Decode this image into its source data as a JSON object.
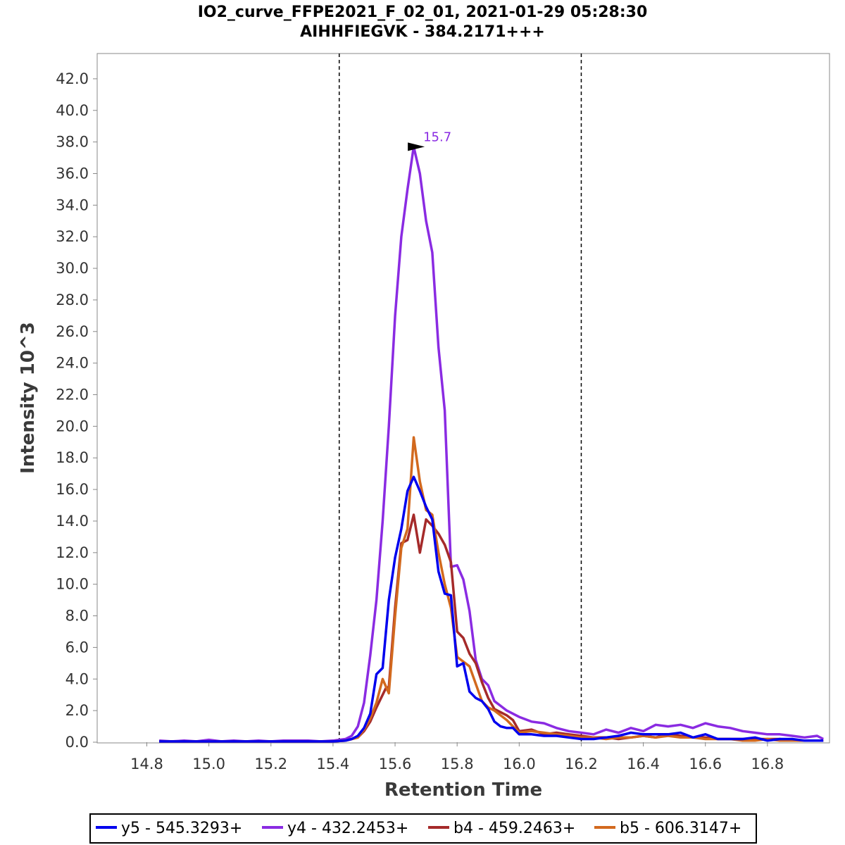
{
  "chart_data": {
    "type": "line",
    "title": "IO2_curve_FFPE2021_F_02_01, 2021-01-29 05:28:30",
    "subtitle": "AIHHFIEGVK - 384.2171+++",
    "xlabel": "Retention Time",
    "ylabel": "Intensity 10^3",
    "xlim": [
      14.64,
      17.0
    ],
    "ylim": [
      0,
      43.6
    ],
    "x_ticks": [
      14.8,
      15.0,
      15.2,
      15.4,
      15.6,
      15.8,
      16.0,
      16.2,
      16.4,
      16.6,
      16.8
    ],
    "x_tick_labels": [
      "14.8",
      "15.0",
      "15.2",
      "15.4",
      "15.6",
      "15.8",
      "16.0",
      "16.2",
      "16.4",
      "16.6",
      "16.8"
    ],
    "y_ticks": [
      0,
      2,
      4,
      6,
      8,
      10,
      12,
      14,
      16,
      18,
      20,
      22,
      24,
      26,
      28,
      30,
      32,
      34,
      36,
      38,
      40,
      42
    ],
    "y_tick_labels": [
      "0.0",
      "2.0",
      "4.0",
      "6.0",
      "8.0",
      "10.0",
      "12.0",
      "14.0",
      "16.0",
      "18.0",
      "20.0",
      "22.0",
      "24.0",
      "26.0",
      "28.0",
      "30.0",
      "32.0",
      "34.0",
      "36.0",
      "38.0",
      "40.0",
      "42.0"
    ],
    "boundaries": [
      15.42,
      16.2
    ],
    "grid": false,
    "legend_position": "bottom-center",
    "peak_annotation": {
      "label": "15.7",
      "x": 15.7,
      "y": 37.7,
      "series": "y4 - 432.2453+"
    },
    "series": [
      {
        "name": "y4 - 432.2453+",
        "color": "#8a2be2",
        "x": [
          14.84,
          14.88,
          14.92,
          14.96,
          15.0,
          15.04,
          15.08,
          15.12,
          15.16,
          15.2,
          15.24,
          15.28,
          15.32,
          15.36,
          15.4,
          15.44,
          15.46,
          15.48,
          15.5,
          15.52,
          15.54,
          15.56,
          15.58,
          15.6,
          15.62,
          15.64,
          15.66,
          15.68,
          15.7,
          15.72,
          15.74,
          15.76,
          15.78,
          15.8,
          15.82,
          15.84,
          15.86,
          15.88,
          15.9,
          15.92,
          15.94,
          15.96,
          15.98,
          16.0,
          16.04,
          16.08,
          16.12,
          16.16,
          16.2,
          16.24,
          16.28,
          16.32,
          16.36,
          16.4,
          16.44,
          16.48,
          16.52,
          16.56,
          16.6,
          16.64,
          16.68,
          16.72,
          16.76,
          16.8,
          16.84,
          16.88,
          16.92,
          16.96,
          16.98
        ],
        "values": [
          0.1,
          0.05,
          0.1,
          0.05,
          0.15,
          0.05,
          0.1,
          0.05,
          0.1,
          0.05,
          0.1,
          0.1,
          0.1,
          0.05,
          0.1,
          0.2,
          0.4,
          1.0,
          2.5,
          5.5,
          9.0,
          14.0,
          20.0,
          27.0,
          32.0,
          35.0,
          37.7,
          36.0,
          33.0,
          31.0,
          25.0,
          21.0,
          11.1,
          11.2,
          10.3,
          8.3,
          5.2,
          4.0,
          3.6,
          2.6,
          2.3,
          2.0,
          1.8,
          1.6,
          1.3,
          1.2,
          0.9,
          0.7,
          0.6,
          0.5,
          0.8,
          0.6,
          0.9,
          0.7,
          1.1,
          1.0,
          1.1,
          0.9,
          1.2,
          1.0,
          0.9,
          0.7,
          0.6,
          0.5,
          0.5,
          0.4,
          0.3,
          0.4,
          0.2
        ]
      },
      {
        "name": "b4 - 459.2463+",
        "color": "#a52a2a",
        "x": [
          14.84,
          14.92,
          15.0,
          15.08,
          15.16,
          15.24,
          15.32,
          15.4,
          15.44,
          15.48,
          15.5,
          15.52,
          15.54,
          15.56,
          15.57,
          15.58,
          15.6,
          15.62,
          15.64,
          15.66,
          15.68,
          15.7,
          15.72,
          15.74,
          15.76,
          15.78,
          15.8,
          15.82,
          15.84,
          15.86,
          15.88,
          15.9,
          15.92,
          15.94,
          15.96,
          15.98,
          16.0,
          16.04,
          16.08,
          16.12,
          16.16,
          16.2,
          16.24,
          16.28,
          16.32,
          16.36,
          16.4,
          16.44,
          16.48,
          16.52,
          16.56,
          16.6,
          16.64,
          16.68,
          16.72,
          16.76,
          16.8,
          16.84,
          16.88,
          16.92,
          16.96,
          16.98
        ],
        "values": [
          0.05,
          0.05,
          0.05,
          0.05,
          0.05,
          0.05,
          0.05,
          0.05,
          0.1,
          0.3,
          0.7,
          1.3,
          2.2,
          3.0,
          3.4,
          3.5,
          8.5,
          12.6,
          12.8,
          14.4,
          12.0,
          14.1,
          13.7,
          13.2,
          12.5,
          11.4,
          7.0,
          6.6,
          5.6,
          5.0,
          3.8,
          2.8,
          2.1,
          1.9,
          1.7,
          1.4,
          0.7,
          0.8,
          0.5,
          0.6,
          0.5,
          0.4,
          0.3,
          0.3,
          0.2,
          0.3,
          0.4,
          0.3,
          0.5,
          0.4,
          0.3,
          0.3,
          0.2,
          0.2,
          0.2,
          0.2,
          0.2,
          0.2,
          0.1,
          0.1,
          0.1,
          0.1
        ]
      },
      {
        "name": "b5 - 606.3147+",
        "color": "#d2691e",
        "x": [
          14.84,
          14.92,
          15.0,
          15.08,
          15.16,
          15.24,
          15.32,
          15.4,
          15.44,
          15.48,
          15.5,
          15.52,
          15.54,
          15.56,
          15.58,
          15.6,
          15.62,
          15.64,
          15.66,
          15.68,
          15.7,
          15.72,
          15.74,
          15.76,
          15.78,
          15.8,
          15.82,
          15.84,
          15.86,
          15.88,
          15.9,
          15.92,
          15.94,
          15.96,
          15.98,
          16.0,
          16.04,
          16.08,
          16.12,
          16.16,
          16.2,
          16.24,
          16.28,
          16.32,
          16.36,
          16.4,
          16.44,
          16.48,
          16.52,
          16.56,
          16.6,
          16.64,
          16.68,
          16.72,
          16.76,
          16.8,
          16.84,
          16.88,
          16.92,
          16.96,
          16.98
        ],
        "values": [
          0.05,
          0.05,
          0.05,
          0.05,
          0.05,
          0.05,
          0.05,
          0.05,
          0.1,
          0.3,
          0.8,
          1.5,
          2.5,
          4.0,
          3.1,
          8.0,
          12.3,
          13.5,
          19.3,
          16.5,
          14.7,
          14.4,
          12.0,
          10.0,
          8.5,
          5.4,
          5.1,
          4.8,
          3.7,
          2.6,
          2.2,
          2.0,
          1.7,
          1.4,
          1.0,
          0.6,
          0.7,
          0.6,
          0.5,
          0.4,
          0.3,
          0.3,
          0.2,
          0.3,
          0.3,
          0.4,
          0.3,
          0.4,
          0.3,
          0.3,
          0.2,
          0.2,
          0.2,
          0.1,
          0.1,
          0.2,
          0.1,
          0.1,
          0.1,
          0.1,
          0.1
        ]
      },
      {
        "name": "y5 - 545.3293+",
        "color": "#0000ee",
        "x": [
          14.84,
          14.92,
          15.0,
          15.08,
          15.16,
          15.24,
          15.32,
          15.4,
          15.44,
          15.46,
          15.48,
          15.5,
          15.52,
          15.54,
          15.56,
          15.58,
          15.6,
          15.62,
          15.64,
          15.66,
          15.68,
          15.7,
          15.72,
          15.74,
          15.76,
          15.78,
          15.8,
          15.82,
          15.84,
          15.86,
          15.88,
          15.9,
          15.92,
          15.94,
          15.96,
          15.98,
          16.0,
          16.04,
          16.08,
          16.12,
          16.16,
          16.2,
          16.24,
          16.28,
          16.32,
          16.36,
          16.4,
          16.44,
          16.48,
          16.52,
          16.56,
          16.6,
          16.64,
          16.68,
          16.72,
          16.76,
          16.8,
          16.84,
          16.88,
          16.92,
          16.96,
          16.98
        ],
        "values": [
          0.05,
          0.05,
          0.05,
          0.05,
          0.05,
          0.05,
          0.05,
          0.05,
          0.1,
          0.2,
          0.4,
          0.9,
          1.8,
          4.3,
          4.7,
          9.0,
          11.7,
          13.5,
          15.9,
          16.8,
          15.9,
          14.9,
          14.1,
          10.8,
          9.4,
          9.3,
          4.8,
          5.0,
          3.2,
          2.8,
          2.6,
          2.1,
          1.3,
          1.0,
          0.9,
          0.9,
          0.5,
          0.5,
          0.4,
          0.4,
          0.3,
          0.2,
          0.2,
          0.3,
          0.4,
          0.6,
          0.5,
          0.5,
          0.5,
          0.6,
          0.3,
          0.5,
          0.2,
          0.2,
          0.2,
          0.3,
          0.1,
          0.2,
          0.2,
          0.1,
          0.1,
          0.1
        ]
      }
    ]
  }
}
